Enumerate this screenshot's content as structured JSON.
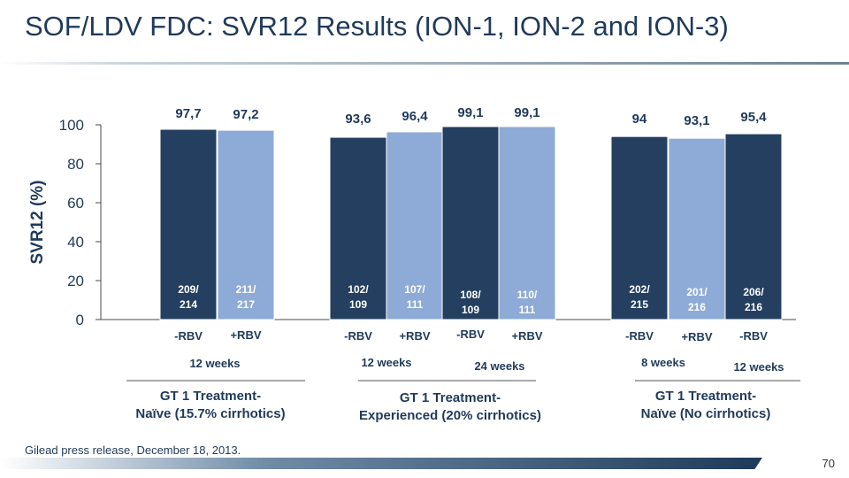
{
  "title": "SOF/LDV FDC:  SVR12 Results (ION-1, ION-2 and ION-3)",
  "footnote": "Gilead press release, December 18, 2013.",
  "slide_number": "70",
  "colors": {
    "dark": "#243f5f",
    "light": "#8eaad6",
    "text": "#1f3a5a"
  },
  "chart_data": {
    "type": "bar",
    "ylabel": "SVR12 (%)",
    "ylim": [
      0,
      100
    ],
    "yticks": [
      0,
      20,
      40,
      60,
      80,
      100
    ],
    "grid": false,
    "bars": [
      {
        "treatment": "-RBV",
        "value": 97.7,
        "value_label": "97,7",
        "n": "209/\n214",
        "shade": "dark"
      },
      {
        "treatment": "+RBV",
        "value": 97.2,
        "value_label": "97,2",
        "n": "211/\n217",
        "shade": "light"
      },
      {
        "treatment": "-RBV",
        "value": 93.6,
        "value_label": "93,6",
        "n": "102/\n109",
        "shade": "dark"
      },
      {
        "treatment": "+RBV",
        "value": 96.4,
        "value_label": "96,4",
        "n": "107/\n111",
        "shade": "light"
      },
      {
        "treatment": "-RBV",
        "value": 99.1,
        "value_label": "99,1",
        "n": "108/\n109",
        "shade": "dark"
      },
      {
        "treatment": "+RBV",
        "value": 99.1,
        "value_label": "99,1",
        "n": "110/\n111",
        "shade": "light"
      },
      {
        "treatment": "-RBV",
        "value": 94.0,
        "value_label": "94",
        "n": "202/\n215",
        "shade": "dark"
      },
      {
        "treatment": "+RBV",
        "value": 93.1,
        "value_label": "93,1",
        "n": "201/\n216",
        "shade": "light"
      },
      {
        "treatment": "-RBV",
        "value": 95.4,
        "value_label": "95,4",
        "n": "206/\n216",
        "shade": "dark"
      }
    ],
    "durations": [
      {
        "label": "12 weeks",
        "bars": [
          0,
          1
        ]
      },
      {
        "label": "12 weeks",
        "bars": [
          2,
          3
        ]
      },
      {
        "label": "24 weeks",
        "bars": [
          4,
          5
        ]
      },
      {
        "label": "8 weeks",
        "bars": [
          6,
          7
        ]
      },
      {
        "label": "12 weeks",
        "bars": [
          8
        ]
      }
    ],
    "groups": [
      {
        "label": "GT 1 Treatment-\nNaïve (15.7% cirrhotics)",
        "bars": [
          0,
          1
        ]
      },
      {
        "label": "GT 1 Treatment-\nExperienced (20% cirrhotics)",
        "bars": [
          2,
          3,
          4,
          5
        ]
      },
      {
        "label": "GT 1 Treatment-\nNaïve (No cirrhotics)",
        "bars": [
          6,
          7,
          8
        ]
      }
    ]
  }
}
